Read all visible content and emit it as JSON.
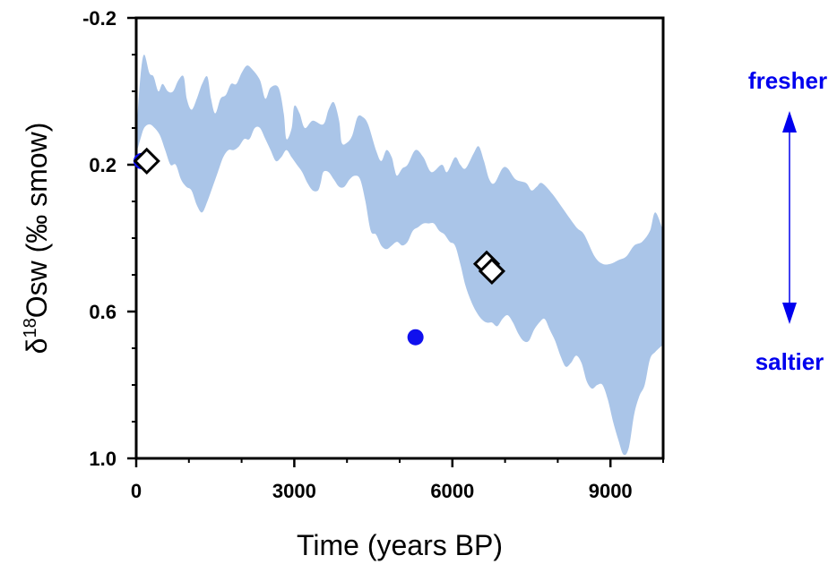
{
  "chart_data": {
    "type": "scatter",
    "xlabel": "Time (years BP)",
    "ylabel": {
      "prefix": "δ",
      "superscript": "18",
      "main": "Osw (‰ smow)"
    },
    "xlim": [
      0,
      10000
    ],
    "ylim": [
      1.0,
      -0.2
    ],
    "y_inverted": true,
    "xticks": [
      {
        "value": 0,
        "label": "0"
      },
      {
        "value": 3000,
        "label": "3000"
      },
      {
        "value": 6000,
        "label": "6000"
      },
      {
        "value": 9000,
        "label": "9000"
      }
    ],
    "yticks": [
      {
        "value": -0.2,
        "label": "-0.2"
      },
      {
        "value": 0.2,
        "label": "0.2"
      },
      {
        "value": 0.6,
        "label": "0.6"
      },
      {
        "value": 1.0,
        "label": "1.0"
      }
    ],
    "grid": false,
    "band": {
      "color": "#aac5e8",
      "upper": [
        [
          0,
          0.12
        ],
        [
          80,
          -0.04
        ],
        [
          150,
          -0.1
        ],
        [
          250,
          -0.05
        ],
        [
          330,
          -0.04
        ],
        [
          420,
          0.0
        ],
        [
          500,
          -0.02
        ],
        [
          600,
          0.0
        ],
        [
          700,
          0.0
        ],
        [
          800,
          -0.03
        ],
        [
          900,
          -0.04
        ],
        [
          960,
          0.02
        ],
        [
          1050,
          0.05
        ],
        [
          1150,
          0.02
        ],
        [
          1250,
          -0.02
        ],
        [
          1350,
          -0.04
        ],
        [
          1420,
          0.02
        ],
        [
          1500,
          0.06
        ],
        [
          1600,
          0.02
        ],
        [
          1700,
          0.01
        ],
        [
          1800,
          -0.02
        ],
        [
          1900,
          -0.02
        ],
        [
          2000,
          -0.05
        ],
        [
          2100,
          -0.07
        ],
        [
          2200,
          -0.06
        ],
        [
          2350,
          -0.03
        ],
        [
          2450,
          0.02
        ],
        [
          2550,
          -0.01
        ],
        [
          2700,
          -0.01
        ],
        [
          2800,
          0.06
        ],
        [
          2850,
          0.13
        ],
        [
          2950,
          0.1
        ],
        [
          3000,
          0.04
        ],
        [
          3100,
          0.06
        ],
        [
          3200,
          0.1
        ],
        [
          3350,
          0.08
        ],
        [
          3550,
          0.09
        ],
        [
          3650,
          0.05
        ],
        [
          3750,
          0.03
        ],
        [
          3850,
          0.08
        ],
        [
          3900,
          0.14
        ],
        [
          4000,
          0.14
        ],
        [
          4100,
          0.12
        ],
        [
          4200,
          0.07
        ],
        [
          4300,
          0.07
        ],
        [
          4400,
          0.09
        ],
        [
          4550,
          0.16
        ],
        [
          4650,
          0.19
        ],
        [
          4750,
          0.16
        ],
        [
          4850,
          0.18
        ],
        [
          4900,
          0.21
        ],
        [
          4950,
          0.23
        ],
        [
          5050,
          0.21
        ],
        [
          5150,
          0.2
        ],
        [
          5300,
          0.16
        ],
        [
          5450,
          0.18
        ],
        [
          5600,
          0.22
        ],
        [
          5800,
          0.2
        ],
        [
          5900,
          0.22
        ],
        [
          6050,
          0.18
        ],
        [
          6150,
          0.2
        ],
        [
          6250,
          0.21
        ],
        [
          6400,
          0.17
        ],
        [
          6500,
          0.15
        ],
        [
          6600,
          0.19
        ],
        [
          6700,
          0.24
        ],
        [
          6800,
          0.25
        ],
        [
          6950,
          0.21
        ],
        [
          7050,
          0.21
        ],
        [
          7200,
          0.24
        ],
        [
          7400,
          0.25
        ],
        [
          7500,
          0.27
        ],
        [
          7600,
          0.26
        ],
        [
          7700,
          0.25
        ],
        [
          7900,
          0.28
        ],
        [
          8100,
          0.32
        ],
        [
          8350,
          0.37
        ],
        [
          8500,
          0.39
        ],
        [
          8700,
          0.45
        ],
        [
          8850,
          0.47
        ],
        [
          9000,
          0.47
        ],
        [
          9150,
          0.46
        ],
        [
          9300,
          0.45
        ],
        [
          9450,
          0.42
        ],
        [
          9600,
          0.41
        ],
        [
          9750,
          0.38
        ],
        [
          9850,
          0.33
        ],
        [
          10000,
          0.38
        ]
      ],
      "lower": [
        [
          0,
          0.17
        ],
        [
          80,
          0.13
        ],
        [
          150,
          0.1
        ],
        [
          250,
          0.09
        ],
        [
          350,
          0.1
        ],
        [
          450,
          0.12
        ],
        [
          550,
          0.16
        ],
        [
          650,
          0.2
        ],
        [
          750,
          0.2
        ],
        [
          850,
          0.24
        ],
        [
          950,
          0.26
        ],
        [
          1050,
          0.27
        ],
        [
          1150,
          0.31
        ],
        [
          1250,
          0.33
        ],
        [
          1350,
          0.3
        ],
        [
          1450,
          0.26
        ],
        [
          1550,
          0.22
        ],
        [
          1650,
          0.18
        ],
        [
          1750,
          0.16
        ],
        [
          1850,
          0.16
        ],
        [
          1950,
          0.15
        ],
        [
          2050,
          0.13
        ],
        [
          2150,
          0.13
        ],
        [
          2250,
          0.1
        ],
        [
          2350,
          0.1
        ],
        [
          2450,
          0.13
        ],
        [
          2550,
          0.16
        ],
        [
          2650,
          0.19
        ],
        [
          2750,
          0.18
        ],
        [
          2850,
          0.16
        ],
        [
          2950,
          0.18
        ],
        [
          3050,
          0.2
        ],
        [
          3150,
          0.22
        ],
        [
          3250,
          0.25
        ],
        [
          3350,
          0.27
        ],
        [
          3450,
          0.27
        ],
        [
          3500,
          0.25
        ],
        [
          3550,
          0.22
        ],
        [
          3650,
          0.22
        ],
        [
          3750,
          0.24
        ],
        [
          3850,
          0.26
        ],
        [
          3950,
          0.26
        ],
        [
          4050,
          0.24
        ],
        [
          4150,
          0.23
        ],
        [
          4250,
          0.24
        ],
        [
          4350,
          0.3
        ],
        [
          4450,
          0.38
        ],
        [
          4550,
          0.39
        ],
        [
          4650,
          0.42
        ],
        [
          4750,
          0.43
        ],
        [
          4850,
          0.42
        ],
        [
          4950,
          0.41
        ],
        [
          5050,
          0.42
        ],
        [
          5150,
          0.41
        ],
        [
          5250,
          0.38
        ],
        [
          5350,
          0.37
        ],
        [
          5450,
          0.36
        ],
        [
          5550,
          0.36
        ],
        [
          5650,
          0.36
        ],
        [
          5750,
          0.38
        ],
        [
          5850,
          0.39
        ],
        [
          5950,
          0.41
        ],
        [
          6050,
          0.42
        ],
        [
          6150,
          0.47
        ],
        [
          6250,
          0.53
        ],
        [
          6350,
          0.57
        ],
        [
          6450,
          0.6
        ],
        [
          6550,
          0.62
        ],
        [
          6650,
          0.63
        ],
        [
          6750,
          0.63
        ],
        [
          6850,
          0.64
        ],
        [
          6950,
          0.62
        ],
        [
          7050,
          0.61
        ],
        [
          7150,
          0.63
        ],
        [
          7250,
          0.66
        ],
        [
          7350,
          0.68
        ],
        [
          7450,
          0.68
        ],
        [
          7550,
          0.65
        ],
        [
          7650,
          0.63
        ],
        [
          7750,
          0.62
        ],
        [
          7850,
          0.65
        ],
        [
          7950,
          0.68
        ],
        [
          8050,
          0.72
        ],
        [
          8150,
          0.75
        ],
        [
          8250,
          0.74
        ],
        [
          8350,
          0.72
        ],
        [
          8450,
          0.74
        ],
        [
          8550,
          0.79
        ],
        [
          8650,
          0.81
        ],
        [
          8750,
          0.8
        ],
        [
          8850,
          0.8
        ],
        [
          8950,
          0.84
        ],
        [
          9050,
          0.9
        ],
        [
          9150,
          0.95
        ],
        [
          9250,
          0.99
        ],
        [
          9350,
          0.97
        ],
        [
          9450,
          0.88
        ],
        [
          9550,
          0.83
        ],
        [
          9650,
          0.8
        ],
        [
          9750,
          0.73
        ],
        [
          9850,
          0.71
        ],
        [
          10000,
          0.69
        ]
      ]
    },
    "series": [
      {
        "marker": "circle",
        "color": "#1010ee",
        "points": [
          [
            100,
            0.19
          ],
          [
            5300,
            0.67
          ]
        ]
      },
      {
        "marker": "diamond",
        "color": "#ffffff",
        "points": [
          [
            200,
            0.19
          ],
          [
            6650,
            0.47
          ],
          [
            6750,
            0.49
          ]
        ]
      }
    ]
  },
  "annotations": {
    "fresher": "fresher",
    "saltier": "saltier",
    "color": "#0000ee"
  }
}
